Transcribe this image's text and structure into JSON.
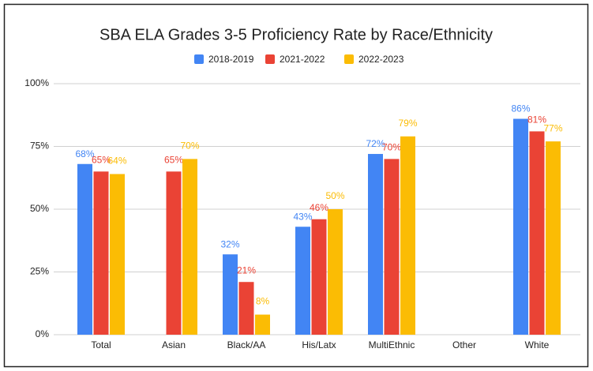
{
  "chart_data": {
    "type": "bar",
    "title": "SBA ELA Grades 3-5 Proficiency Rate by Race/Ethnicity",
    "categories": [
      "Total",
      "Asian",
      "Black/AA",
      "His/Latx",
      "MultiEthnic",
      "Other",
      "White"
    ],
    "series": [
      {
        "name": "2018-2019",
        "color": "#4285f4",
        "values": [
          68,
          null,
          32,
          43,
          72,
          null,
          86
        ],
        "value_labels": [
          "68%",
          null,
          "32%",
          "43%",
          "72%",
          null,
          "86%"
        ]
      },
      {
        "name": "2021-2022",
        "color": "#ea4335",
        "values": [
          65,
          65,
          21,
          46,
          70,
          null,
          81
        ],
        "value_labels": [
          "65%",
          "65%",
          "21%",
          "46%",
          "70%",
          null,
          "81%"
        ]
      },
      {
        "name": "2022-2023",
        "color": "#fbbc04",
        "values": [
          64,
          70,
          8,
          50,
          79,
          null,
          77
        ],
        "value_labels": [
          "64%",
          "70%",
          "8%",
          "50%",
          "79%",
          null,
          "77%"
        ]
      }
    ],
    "ylim": [
      0,
      100
    ],
    "yticks": [
      {
        "value": 0,
        "label": "0%"
      },
      {
        "value": 25,
        "label": "25%"
      },
      {
        "value": 50,
        "label": "50%"
      },
      {
        "value": 75,
        "label": "75%"
      },
      {
        "value": 100,
        "label": "100%"
      }
    ],
    "grid": true,
    "legend": "top"
  }
}
